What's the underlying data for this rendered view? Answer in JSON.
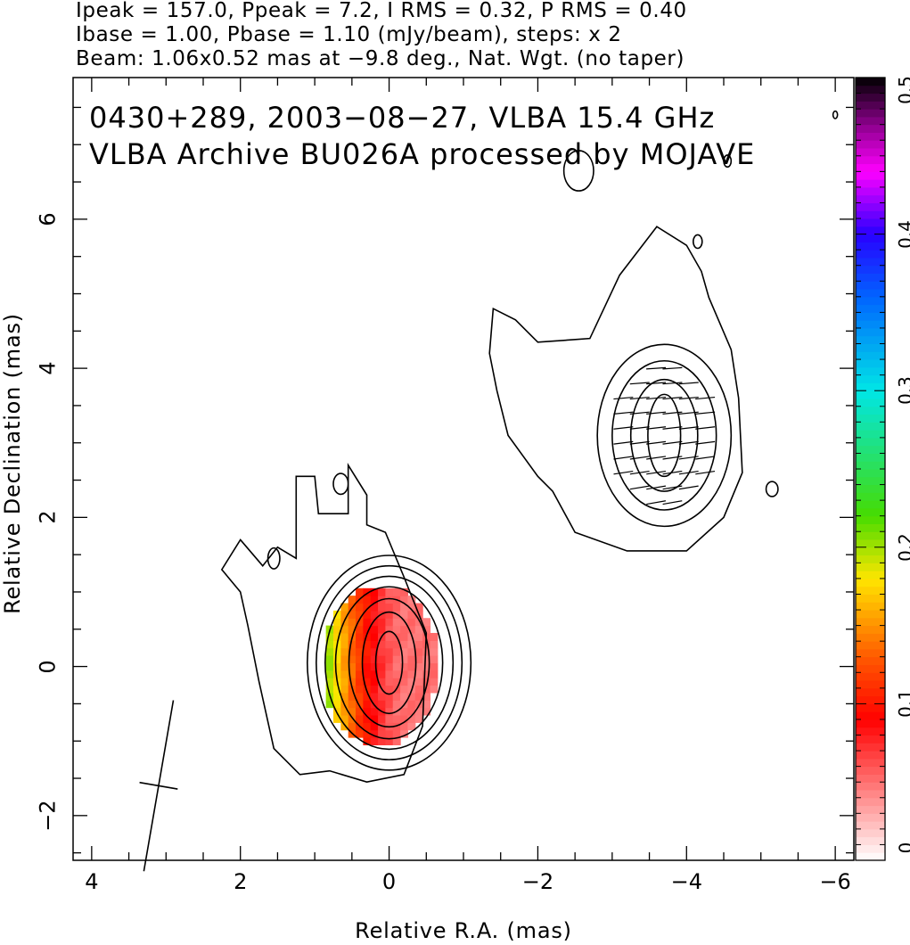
{
  "header": {
    "line1": "Ipeak = 157.0, Ppeak = 7.2, I RMS = 0.32, P RMS = 0.40",
    "line2": "Ibase = 1.00, Pbase = 1.10 (mJy/beam), steps: x 2",
    "line3": "Beam: 1.06x0.52 mas at −9.8 deg., Nat. Wgt. (no taper)"
  },
  "annotation": {
    "line1": "0430+289, 2003−08−27, VLBA 15.4 GHz",
    "line2": "VLBA Archive BU026A processed by MOJAVE"
  },
  "chart_data": {
    "type": "heatmap",
    "description_type": "radio contour map with fractional polarization color overlay",
    "xlabel": "Relative R.A. (mas)",
    "ylabel": "Relative Declination (mas)",
    "xlim": [
      4.25,
      -6.25
    ],
    "ylim": [
      -2.6,
      7.9
    ],
    "x_ticks": [
      4,
      2,
      0,
      -2,
      -4,
      -6
    ],
    "x_tick_labels": [
      "4",
      "2",
      "0",
      "−2",
      "−4",
      "−6"
    ],
    "y_ticks": [
      -2,
      0,
      2,
      4,
      6
    ],
    "y_tick_labels": [
      "−2",
      "0",
      "2",
      "4",
      "6"
    ],
    "colorbar": {
      "min": 0,
      "max": 0.5,
      "ticks": [
        0,
        0.1,
        0.2,
        0.3,
        0.4,
        0.5
      ],
      "tick_labels": [
        "0",
        "0.1",
        "0.2",
        "0.3",
        "0.4",
        "0.5"
      ]
    },
    "intensity_peak_mJy_per_beam": 157.0,
    "polarized_peak_mJy_per_beam": 7.2,
    "contour_base_mJy_per_beam": 1.0,
    "contour_step_factor": 2,
    "core": {
      "ra": 0.0,
      "dec": 0.05,
      "n_contours": 8
    },
    "jet_component": {
      "ra": -3.7,
      "dec": 3.1,
      "n_contours": 4
    },
    "beam": {
      "ra": 3.1,
      "dec": -1.6,
      "major_mas": 1.06,
      "minor_mas": 0.52,
      "pa_deg": -9.8
    },
    "fractional_polarization_core_range": [
      0.05,
      0.25
    ]
  }
}
